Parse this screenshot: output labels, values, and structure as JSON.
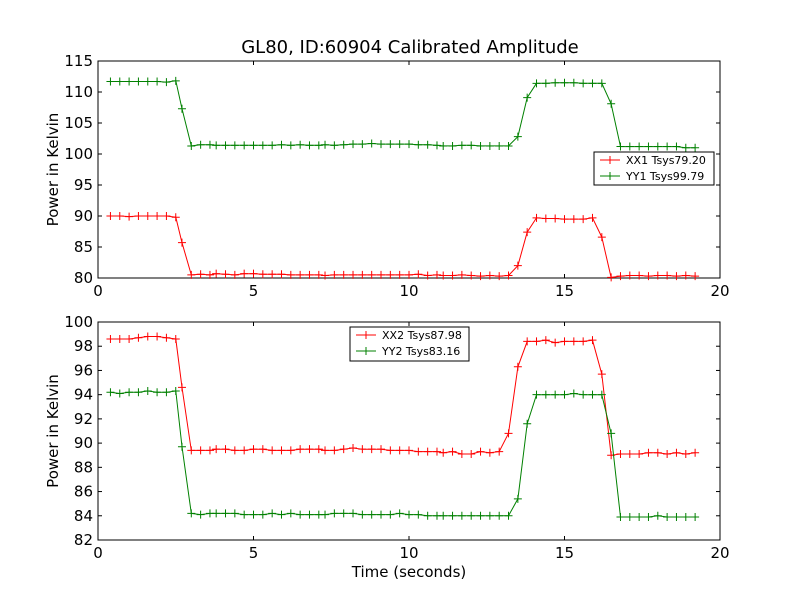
{
  "figure": {
    "title": "GL80, ID:60904 Calibrated Amplitude"
  },
  "chart_data": [
    {
      "type": "line",
      "title": "GL80, ID:60904 Calibrated Amplitude",
      "xlabel": "",
      "ylabel": "Power in Kelvin",
      "xlim": [
        0,
        20
      ],
      "ylim": [
        80,
        115
      ],
      "xticks": [
        0,
        5,
        10,
        15,
        20
      ],
      "yticks": [
        80,
        85,
        90,
        95,
        100,
        105,
        110,
        115
      ],
      "legend_placement": "center-right",
      "grid": false,
      "x": [
        0.4,
        0.7,
        1.0,
        1.3,
        1.6,
        1.9,
        2.2,
        2.5,
        2.7,
        3.0,
        3.3,
        3.6,
        3.8,
        4.1,
        4.4,
        4.7,
        5.0,
        5.3,
        5.6,
        5.9,
        6.2,
        6.5,
        6.8,
        7.1,
        7.3,
        7.6,
        7.9,
        8.2,
        8.5,
        8.8,
        9.1,
        9.4,
        9.7,
        10.0,
        10.3,
        10.6,
        10.9,
        11.1,
        11.4,
        11.7,
        12.0,
        12.3,
        12.6,
        12.9,
        13.2,
        13.5,
        13.8,
        14.1,
        14.4,
        14.7,
        15.0,
        15.3,
        15.6,
        15.9,
        16.2,
        16.5,
        16.8,
        17.1,
        17.4,
        17.7,
        18.0,
        18.3,
        18.6,
        18.9,
        19.2
      ],
      "series": [
        {
          "name": "XX1 Tsys79.20",
          "color": "#ff0000",
          "values": [
            90.0,
            90.0,
            89.9,
            90.0,
            90.0,
            90.0,
            90.0,
            89.8,
            85.7,
            80.5,
            80.6,
            80.5,
            80.7,
            80.6,
            80.5,
            80.7,
            80.7,
            80.6,
            80.6,
            80.6,
            80.5,
            80.5,
            80.5,
            80.5,
            80.4,
            80.5,
            80.5,
            80.5,
            80.5,
            80.5,
            80.5,
            80.5,
            80.5,
            80.5,
            80.6,
            80.4,
            80.5,
            80.4,
            80.4,
            80.5,
            80.4,
            80.3,
            80.4,
            80.3,
            80.4,
            82.0,
            87.4,
            89.7,
            89.6,
            89.6,
            89.5,
            89.5,
            89.5,
            89.7,
            86.6,
            80.1,
            80.3,
            80.4,
            80.4,
            80.3,
            80.4,
            80.4,
            80.3,
            80.4,
            80.3
          ]
        },
        {
          "name": "YY1 Tsys99.79",
          "color": "#008000",
          "values": [
            111.7,
            111.7,
            111.7,
            111.7,
            111.7,
            111.7,
            111.6,
            111.8,
            107.3,
            101.3,
            101.5,
            101.5,
            101.4,
            101.4,
            101.4,
            101.4,
            101.4,
            101.4,
            101.4,
            101.5,
            101.4,
            101.5,
            101.4,
            101.4,
            101.5,
            101.4,
            101.5,
            101.6,
            101.6,
            101.7,
            101.6,
            101.6,
            101.6,
            101.6,
            101.5,
            101.5,
            101.4,
            101.3,
            101.3,
            101.4,
            101.4,
            101.3,
            101.3,
            101.3,
            101.3,
            102.8,
            109.1,
            111.4,
            111.4,
            111.5,
            111.5,
            111.5,
            111.4,
            111.4,
            111.4,
            108.1,
            101.2,
            101.2,
            101.2,
            101.2,
            101.2,
            101.2,
            101.2,
            101.0,
            101.0
          ]
        }
      ]
    },
    {
      "type": "line",
      "title": "",
      "xlabel": "Time (seconds)",
      "ylabel": "Power in Kelvin",
      "xlim": [
        0,
        20
      ],
      "ylim": [
        82,
        100
      ],
      "xticks": [
        0,
        5,
        10,
        15,
        20
      ],
      "yticks": [
        82,
        84,
        86,
        88,
        90,
        92,
        94,
        96,
        98,
        100
      ],
      "legend_placement": "upper-center",
      "grid": false,
      "x": [
        0.4,
        0.7,
        1.0,
        1.3,
        1.6,
        1.9,
        2.2,
        2.5,
        2.7,
        3.0,
        3.3,
        3.6,
        3.8,
        4.1,
        4.4,
        4.7,
        5.0,
        5.3,
        5.6,
        5.9,
        6.2,
        6.5,
        6.8,
        7.1,
        7.3,
        7.6,
        7.9,
        8.2,
        8.5,
        8.8,
        9.1,
        9.4,
        9.7,
        10.0,
        10.3,
        10.6,
        10.9,
        11.1,
        11.4,
        11.7,
        12.0,
        12.3,
        12.6,
        12.9,
        13.2,
        13.5,
        13.8,
        14.1,
        14.4,
        14.7,
        15.0,
        15.3,
        15.6,
        15.9,
        16.2,
        16.5,
        16.8,
        17.1,
        17.4,
        17.7,
        18.0,
        18.3,
        18.6,
        18.9,
        19.2
      ],
      "series": [
        {
          "name": "XX2 Tsys87.98",
          "color": "#ff0000",
          "values": [
            98.6,
            98.6,
            98.6,
            98.7,
            98.8,
            98.8,
            98.7,
            98.6,
            94.6,
            89.4,
            89.4,
            89.4,
            89.5,
            89.5,
            89.4,
            89.4,
            89.5,
            89.5,
            89.4,
            89.4,
            89.4,
            89.5,
            89.5,
            89.5,
            89.4,
            89.4,
            89.5,
            89.6,
            89.5,
            89.5,
            89.5,
            89.4,
            89.4,
            89.4,
            89.3,
            89.3,
            89.3,
            89.2,
            89.3,
            89.1,
            89.1,
            89.3,
            89.2,
            89.3,
            90.8,
            96.3,
            98.4,
            98.4,
            98.5,
            98.3,
            98.4,
            98.4,
            98.4,
            98.5,
            95.7,
            89.0,
            89.1,
            89.1,
            89.1,
            89.2,
            89.2,
            89.1,
            89.2,
            89.1,
            89.2
          ]
        },
        {
          "name": "YY2 Tsys83.16",
          "color": "#008000",
          "values": [
            94.2,
            94.1,
            94.2,
            94.2,
            94.3,
            94.2,
            94.2,
            94.3,
            89.7,
            84.2,
            84.1,
            84.2,
            84.2,
            84.2,
            84.2,
            84.1,
            84.1,
            84.1,
            84.2,
            84.1,
            84.2,
            84.1,
            84.1,
            84.1,
            84.1,
            84.2,
            84.2,
            84.2,
            84.1,
            84.1,
            84.1,
            84.1,
            84.2,
            84.1,
            84.1,
            84.0,
            84.0,
            84.0,
            84.0,
            84.0,
            84.0,
            84.0,
            84.0,
            84.0,
            84.0,
            85.4,
            91.6,
            94.0,
            94.0,
            94.0,
            94.0,
            94.1,
            94.0,
            94.0,
            94.0,
            90.8,
            83.9,
            83.9,
            83.9,
            83.9,
            84.0,
            83.9,
            83.9,
            83.9,
            83.9
          ]
        }
      ]
    }
  ]
}
